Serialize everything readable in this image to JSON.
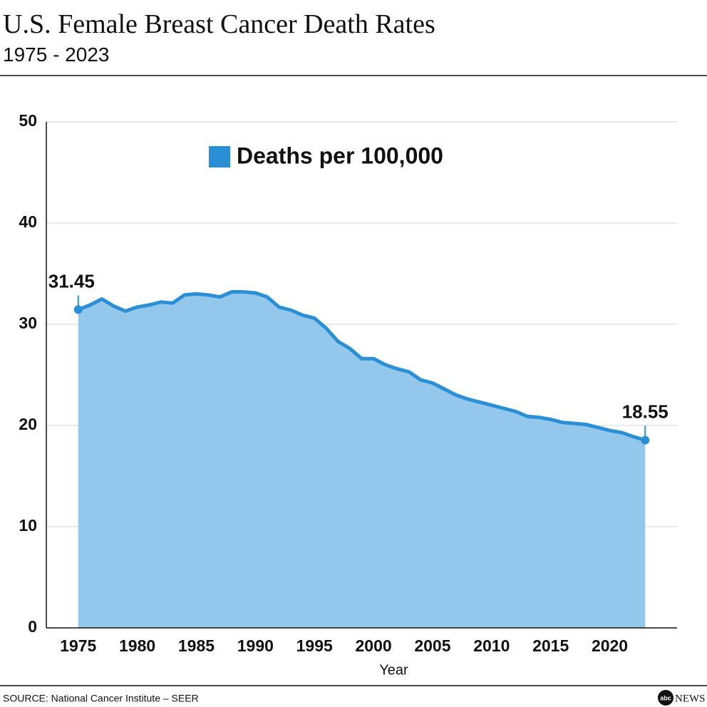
{
  "chart_data": {
    "type": "area",
    "title": "U.S. Female Breast Cancer Death Rates",
    "subtitle": "1975 - 2023",
    "x_label": "Year",
    "source": "SOURCE: National Cancer Institute – SEER",
    "logo": {
      "mark": "abc",
      "text": "NEWS"
    },
    "x": [
      1975,
      1976,
      1977,
      1978,
      1979,
      1980,
      1981,
      1982,
      1983,
      1984,
      1985,
      1986,
      1987,
      1988,
      1989,
      1990,
      1991,
      1992,
      1993,
      1994,
      1995,
      1996,
      1997,
      1998,
      1999,
      2000,
      2001,
      2002,
      2003,
      2004,
      2005,
      2006,
      2007,
      2008,
      2009,
      2010,
      2011,
      2012,
      2013,
      2014,
      2015,
      2016,
      2017,
      2018,
      2019,
      2020,
      2021,
      2022,
      2023
    ],
    "series": [
      {
        "name": "Deaths per 100,000",
        "color": "#2b8fd6",
        "fill": "#93c7ec",
        "values": [
          31.45,
          31.9,
          32.5,
          31.8,
          31.3,
          31.7,
          31.9,
          32.2,
          32.1,
          32.9,
          33.0,
          32.9,
          32.7,
          33.2,
          33.2,
          33.1,
          32.7,
          31.7,
          31.4,
          30.9,
          30.6,
          29.6,
          28.3,
          27.6,
          26.6,
          26.6,
          26.0,
          25.6,
          25.3,
          24.5,
          24.2,
          23.6,
          23.0,
          22.6,
          22.3,
          22.0,
          21.7,
          21.4,
          20.9,
          20.8,
          20.6,
          20.3,
          20.2,
          20.1,
          19.8,
          19.5,
          19.3,
          18.9,
          18.55
        ]
      }
    ],
    "xlim": [
      1972.3,
      2025.7
    ],
    "xticks": [
      1975,
      1980,
      1985,
      1990,
      1995,
      2000,
      2005,
      2010,
      2015,
      2020
    ],
    "ylim": [
      0,
      50
    ],
    "yticks": [
      0,
      10,
      20,
      30,
      40,
      50
    ],
    "grid": true,
    "legend": "top"
  }
}
